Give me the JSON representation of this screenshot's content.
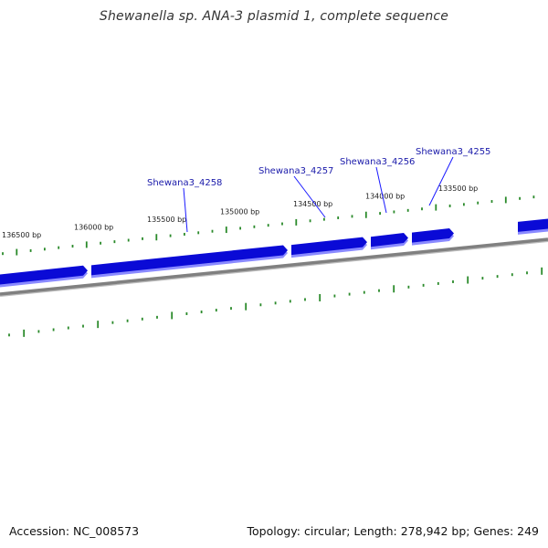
{
  "title": "Shewanella sp. ANA-3 plasmid 1, complete sequence",
  "footer": {
    "accession": "Accession: NC_008573",
    "summary": "Topology: circular; Length: 278,942 bp; Genes: 249"
  },
  "colors": {
    "gene_fill": "#0a0ad6",
    "gene_shadow": "#8a8aff",
    "backbone": "#808080",
    "tick": "#2a8a2a",
    "gene_label": "#1a1aaa",
    "leader_line": "#1a1aff"
  },
  "scale_ticks": [
    {
      "label": "136500 bp"
    },
    {
      "label": "136000 bp"
    },
    {
      "label": "135500 bp"
    },
    {
      "label": "135000 bp"
    },
    {
      "label": "134500 bp"
    },
    {
      "label": "134000 bp"
    },
    {
      "label": "133500 bp"
    }
  ],
  "gene_labels": [
    {
      "name": "Shewana3_4258"
    },
    {
      "name": "Shewana3_4257"
    },
    {
      "name": "Shewana3_4256"
    },
    {
      "name": "Shewana3_4255"
    }
  ],
  "genes": [
    {
      "strand": "forward"
    },
    {
      "strand": "forward"
    },
    {
      "strand": "forward"
    },
    {
      "strand": "forward"
    },
    {
      "strand": "forward"
    },
    {
      "strand": "forward"
    }
  ]
}
